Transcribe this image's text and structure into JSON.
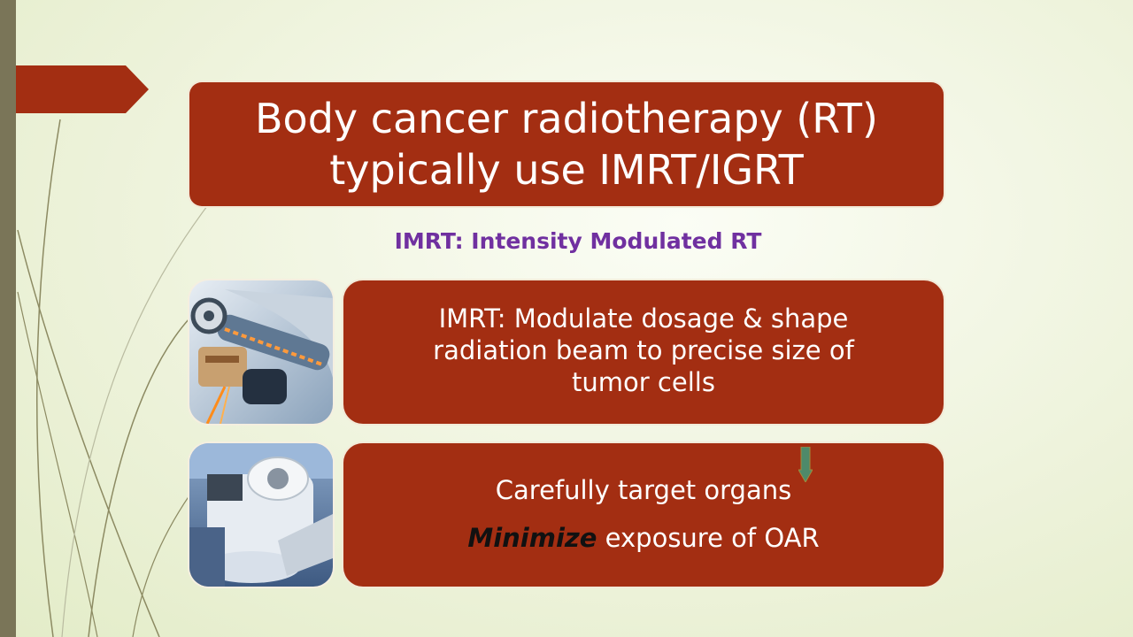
{
  "slide": {
    "title": "Body cancer radiotherapy (RT)\ntypically use IMRT/IGRT",
    "subtitle": "IMRT: Intensity Modulated RT",
    "card1": {
      "text": "IMRT: Modulate dosage & shape\nradiation beam to precise size of\ntumor cells"
    },
    "card2": {
      "line1": "Carefully target organs",
      "emphasis": "Minimize",
      "line2_rest": " exposure of OAR"
    }
  },
  "colors": {
    "card_fill": "#a32e12",
    "subtitle": "#7030a0",
    "left_bar": "#7a7558",
    "arrow": "#4e8a6a"
  },
  "icons": {
    "pointer": "pentagon-arrow-right",
    "thumb1": "linac-gantry-image",
    "thumb2": "radiotherapy-machine-image",
    "marker": "down-arrow-icon"
  }
}
